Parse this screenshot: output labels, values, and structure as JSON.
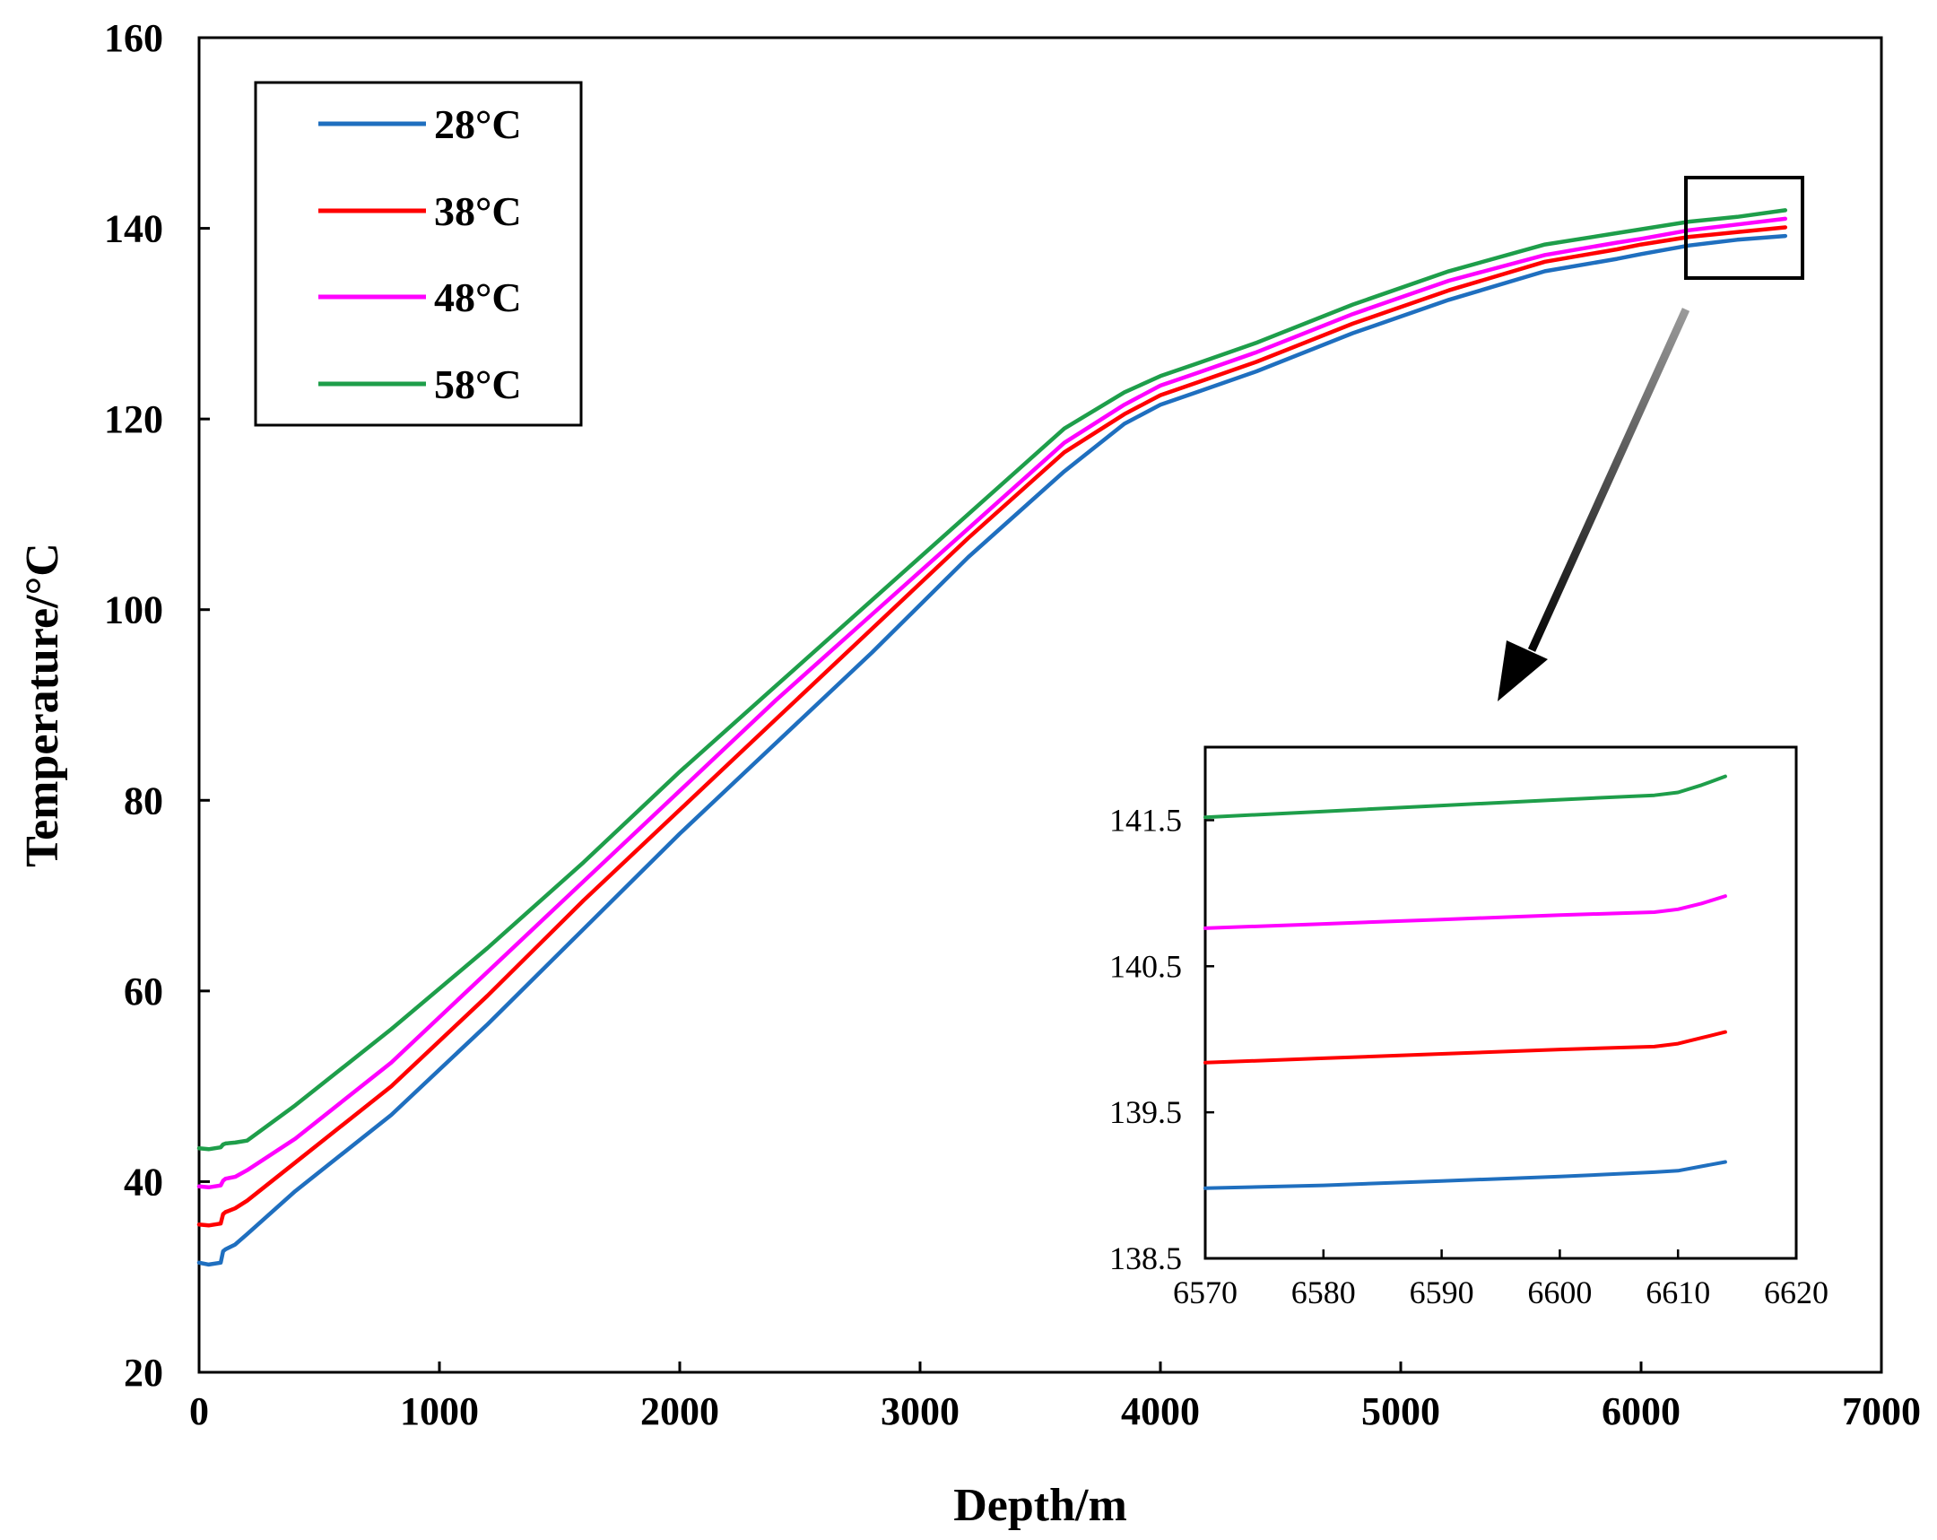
{
  "chart_data": [
    {
      "type": "line",
      "title": "",
      "xlabel": "Depth/m",
      "ylabel": "Temperature/°C",
      "xlim": [
        0,
        7000
      ],
      "ylim": [
        20,
        160
      ],
      "xticks": [
        0,
        1000,
        2000,
        3000,
        4000,
        5000,
        6000,
        7000
      ],
      "yticks": [
        20,
        40,
        60,
        80,
        100,
        120,
        140,
        160
      ],
      "xtick_labels": [
        "0",
        "1000",
        "2000",
        "3000",
        "4000",
        "5000",
        "6000",
        "7000"
      ],
      "ytick_labels": [
        "20",
        "40",
        "60",
        "80",
        "100",
        "120",
        "140",
        "160"
      ],
      "grid": false,
      "legend": "top-left",
      "series": [
        {
          "name": "28°C",
          "color": "#1f6fbf",
          "x": [
            0,
            40,
            90,
            100,
            110,
            150,
            200,
            400,
            800,
            1200,
            1600,
            2000,
            2400,
            2800,
            3200,
            3600,
            3850,
            4000,
            4150,
            4400,
            4800,
            5200,
            5600,
            5900,
            6000,
            6200,
            6400,
            6600
          ],
          "y": [
            31.5,
            31.3,
            31.5,
            32.7,
            32.9,
            33.4,
            34.5,
            39.0,
            47.0,
            56.5,
            66.5,
            76.5,
            86.0,
            95.5,
            105.5,
            114.5,
            119.5,
            121.5,
            122.8,
            125.0,
            129.0,
            132.5,
            135.5,
            136.8,
            137.3,
            138.2,
            138.8,
            139.2
          ]
        },
        {
          "name": "38°C",
          "color": "#ff0000",
          "x": [
            0,
            40,
            90,
            100,
            110,
            150,
            200,
            400,
            800,
            1200,
            1600,
            2000,
            2400,
            2800,
            3200,
            3600,
            3850,
            4000,
            4150,
            4400,
            4800,
            5200,
            5600,
            5900,
            6000,
            6200,
            6400,
            6600
          ],
          "y": [
            35.5,
            35.4,
            35.6,
            36.6,
            36.8,
            37.2,
            38.0,
            42.0,
            50.0,
            59.5,
            69.5,
            79.0,
            88.5,
            98.0,
            107.5,
            116.5,
            120.5,
            122.5,
            123.8,
            126.0,
            130.0,
            133.5,
            136.5,
            137.8,
            138.3,
            139.1,
            139.6,
            140.1
          ]
        },
        {
          "name": "48°C",
          "color": "#ff00ff",
          "x": [
            0,
            40,
            90,
            100,
            110,
            150,
            200,
            400,
            800,
            1200,
            1600,
            2000,
            2400,
            2800,
            3200,
            3600,
            3850,
            4000,
            4150,
            4400,
            4800,
            5200,
            5600,
            5900,
            6000,
            6200,
            6400,
            6600
          ],
          "y": [
            39.5,
            39.4,
            39.6,
            40.1,
            40.3,
            40.5,
            41.2,
            44.5,
            52.5,
            62.0,
            71.5,
            81.0,
            90.5,
            99.5,
            108.5,
            117.5,
            121.5,
            123.5,
            124.8,
            127.0,
            131.0,
            134.5,
            137.2,
            138.5,
            138.9,
            139.8,
            140.4,
            141.0
          ]
        },
        {
          "name": "58°C",
          "color": "#1e9e4a",
          "x": [
            0,
            40,
            90,
            100,
            110,
            150,
            200,
            400,
            800,
            1200,
            1600,
            2000,
            2400,
            2800,
            3200,
            3600,
            3850,
            4000,
            4150,
            4400,
            4800,
            5200,
            5600,
            5900,
            6000,
            6200,
            6400,
            6600
          ],
          "y": [
            43.5,
            43.4,
            43.6,
            43.9,
            44.0,
            44.1,
            44.3,
            48.0,
            56.0,
            64.5,
            73.5,
            83.0,
            92.0,
            101.0,
            110.0,
            119.0,
            122.8,
            124.5,
            125.8,
            128.0,
            132.0,
            135.5,
            138.3,
            139.5,
            139.9,
            140.7,
            141.2,
            141.9
          ]
        }
      ]
    },
    {
      "type": "line",
      "title": "",
      "xlabel": "",
      "ylabel": "",
      "xlim": [
        6570,
        6620
      ],
      "ylim": [
        138.5,
        142.0
      ],
      "xticks": [
        6570,
        6580,
        6590,
        6600,
        6610,
        6620
      ],
      "yticks": [
        138.5,
        139.5,
        140.5,
        141.5
      ],
      "xtick_labels": [
        "6570",
        "6580",
        "6590",
        "6600",
        "6610",
        "6620"
      ],
      "ytick_labels": [
        "138.5",
        "139.5",
        "140.5",
        "141.5"
      ],
      "grid": false,
      "series": [
        {
          "name": "28°C",
          "color": "#1f6fbf",
          "x": [
            6570,
            6580,
            6590,
            6600,
            6608,
            6610,
            6612,
            6614
          ],
          "y": [
            138.98,
            139.0,
            139.03,
            139.06,
            139.09,
            139.1,
            139.13,
            139.16
          ]
        },
        {
          "name": "38°C",
          "color": "#ff0000",
          "x": [
            6570,
            6580,
            6590,
            6600,
            6608,
            6610,
            6612,
            6614
          ],
          "y": [
            139.84,
            139.87,
            139.9,
            139.93,
            139.95,
            139.97,
            140.01,
            140.05
          ]
        },
        {
          "name": "48°C",
          "color": "#ff00ff",
          "x": [
            6570,
            6580,
            6590,
            6600,
            6608,
            6610,
            6612,
            6614
          ],
          "y": [
            140.76,
            140.79,
            140.82,
            140.85,
            140.87,
            140.89,
            140.93,
            140.98
          ]
        },
        {
          "name": "58°C",
          "color": "#1e9e4a",
          "x": [
            6570,
            6580,
            6590,
            6600,
            6608,
            6610,
            6612,
            6614
          ],
          "y": [
            141.52,
            141.56,
            141.6,
            141.64,
            141.67,
            141.69,
            141.74,
            141.8
          ]
        }
      ]
    }
  ]
}
